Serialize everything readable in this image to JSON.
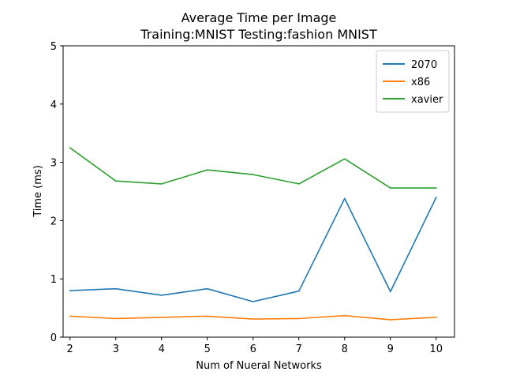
{
  "chart_data": {
    "type": "line",
    "title": "Average Time per Image",
    "subtitle": "Training:MNIST   Testing:fashion MNIST",
    "xlabel": "Num of Nueral Networks",
    "ylabel": "Time (ms)",
    "x": [
      2,
      3,
      4,
      5,
      6,
      7,
      8,
      9,
      10
    ],
    "xlim": [
      1.85,
      10.4
    ],
    "ylim": [
      0,
      5
    ],
    "xticks": [
      "2",
      "3",
      "4",
      "5",
      "6",
      "7",
      "8",
      "9",
      "10"
    ],
    "yticks": [
      "0",
      "1",
      "2",
      "3",
      "4",
      "5"
    ],
    "grid": false,
    "legend_position": "top-right",
    "series": [
      {
        "name": "2070",
        "color": "#1f77b4",
        "values": [
          0.8,
          0.83,
          0.72,
          0.83,
          0.61,
          0.79,
          2.38,
          0.78,
          2.4
        ]
      },
      {
        "name": "x86",
        "color": "#ff7f0e",
        "values": [
          0.36,
          0.32,
          0.34,
          0.36,
          0.31,
          0.32,
          0.37,
          0.3,
          0.34
        ]
      },
      {
        "name": "xavier",
        "color": "#2ca02c",
        "values": [
          3.25,
          2.68,
          2.63,
          2.87,
          2.79,
          2.63,
          3.06,
          2.56,
          2.56
        ]
      }
    ]
  }
}
